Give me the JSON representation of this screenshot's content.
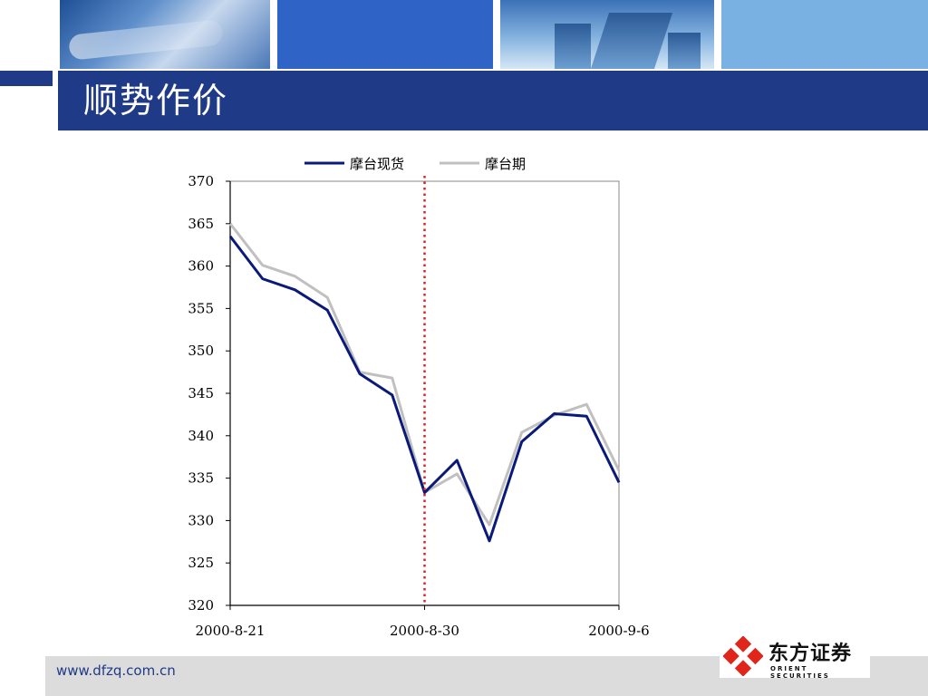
{
  "header": {
    "title": "顺势作价"
  },
  "footer": {
    "url": "www.dfzq.com.cn",
    "logo_cn": "东方证券",
    "logo_en": "ORIENT SECURITIES"
  },
  "colors": {
    "title_bar": "#1f3a86",
    "spot_series": "#0a1a7a",
    "futures_series": "#c0c0c0",
    "marker_line": "#e02020",
    "logo_red": "#e0251b"
  },
  "chart_data": {
    "type": "line",
    "title": "",
    "xlabel": "",
    "ylabel": "",
    "ylim": [
      320,
      370
    ],
    "yticks": [
      320,
      325,
      330,
      335,
      340,
      345,
      350,
      355,
      360,
      365,
      370
    ],
    "x_tick_labels": [
      "2000-8-21",
      "2000-8-30",
      "2000-9-6"
    ],
    "x_tick_positions": [
      0,
      6,
      12
    ],
    "point_count": 13,
    "legend_position": "top",
    "vertical_marker_at": 6,
    "series": [
      {
        "name": "摩台现货",
        "values": [
          363.5,
          358.5,
          357.2,
          354.8,
          347.3,
          344.8,
          333.3,
          337.1,
          327.6,
          339.3,
          342.6,
          342.3,
          334.5
        ]
      },
      {
        "name": "摩台期",
        "values": [
          365.0,
          360.1,
          358.8,
          356.3,
          347.5,
          346.8,
          333.3,
          335.5,
          329.5,
          340.4,
          342.4,
          343.7,
          335.9
        ]
      }
    ]
  }
}
